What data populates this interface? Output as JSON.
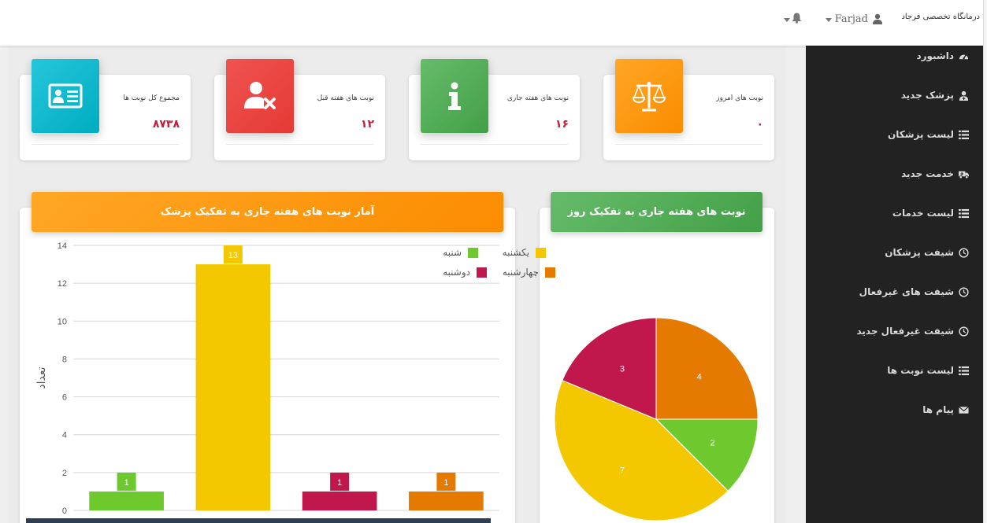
{
  "header": {
    "clinic_name": "درمانگاه تخصصی فرجاد",
    "user_name": "Farjad"
  },
  "sidebar": {
    "items": [
      {
        "label": "داشبورد",
        "icon": "dashboard-icon"
      },
      {
        "label": "پزشک جدید",
        "icon": "user-md-icon"
      },
      {
        "label": "لیست پزشکان",
        "icon": "list-icon"
      },
      {
        "label": "خدمت جدید",
        "icon": "ambulance-icon"
      },
      {
        "label": "لیست خدمات",
        "icon": "list-icon"
      },
      {
        "label": "شیفت پزشکان",
        "icon": "clock-icon"
      },
      {
        "label": "شیفت های غیرفعال",
        "icon": "clock-icon"
      },
      {
        "label": "شیفت غیرفعال جدید",
        "icon": "clock-icon"
      },
      {
        "label": "لیست نوبت ها",
        "icon": "list-icon"
      },
      {
        "label": "پیام ها",
        "icon": "envelope-icon"
      }
    ]
  },
  "cards": [
    {
      "title": "مجموع کل نوبت ها",
      "value": "۸۷۳۸",
      "icon": "id-card-icon",
      "color": "#1fb8d0"
    },
    {
      "title": "نوبت های هفته قبل",
      "value": "۱۲",
      "icon": "user-times-icon",
      "color": "#e53935"
    },
    {
      "title": "نوبت های هفته جاری",
      "value": "۱۶",
      "icon": "info-icon",
      "color": "#4caf50"
    },
    {
      "title": "نوبت های امروز",
      "value": "۰",
      "icon": "balance-scale-icon",
      "color": "#fb8c00"
    }
  ],
  "bar_panel": {
    "title": "آمار نوبت های هفته جاری به تفکیک پزشک"
  },
  "pie_panel": {
    "title": "نوبت های هفته جاری به تفکیک روز"
  },
  "chart_data": [
    {
      "type": "bar",
      "ylabel": "تعداد",
      "ylim": [
        0,
        14
      ],
      "yticks": [
        0,
        2,
        4,
        6,
        8,
        10,
        12,
        14
      ],
      "values": [
        1,
        13,
        1,
        1
      ],
      "colors": [
        "#6ec92e",
        "#f4c800",
        "#c0174c",
        "#e57a00"
      ],
      "grid": true
    },
    {
      "type": "pie",
      "slices": [
        {
          "label": "چهارشنبه",
          "value": 4,
          "color": "#e57a00"
        },
        {
          "label": "شنبه",
          "value": 2,
          "color": "#6ec92e"
        },
        {
          "label": "یکشنبه",
          "value": 7,
          "color": "#f4c800"
        },
        {
          "label": "دوشنبه",
          "value": 3,
          "color": "#c0174c"
        }
      ],
      "legend": [
        {
          "label": "یکشنبه",
          "color": "#f4c800"
        },
        {
          "label": "شنبه",
          "color": "#6ec92e"
        },
        {
          "label": "چهارشنبه",
          "color": "#e57a00"
        },
        {
          "label": "دوشنبه",
          "color": "#c0174c"
        }
      ],
      "legend_position": "top"
    }
  ]
}
